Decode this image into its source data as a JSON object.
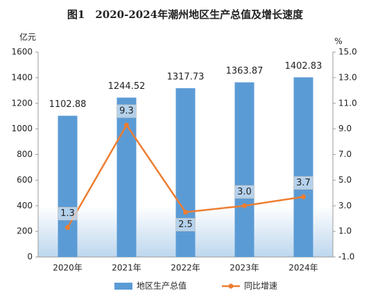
{
  "chart_data": {
    "type": "bar",
    "title": "图1　2020-2024年潮州地区生产总值及增长速度",
    "y_label": "亿元",
    "y2_label": "%",
    "categories": [
      "2020年",
      "2021年",
      "2022年",
      "2023年",
      "2024年"
    ],
    "series": [
      {
        "name": "地区生产总值",
        "color": "#5b9bd5",
        "values": [
          1102.88,
          1244.52,
          1317.73,
          1363.87,
          1402.83
        ]
      },
      {
        "name": "同比增速",
        "type": "line",
        "axis": "y2",
        "color": "#ed7d31",
        "values": [
          1.3,
          9.3,
          2.5,
          3.0,
          3.7
        ],
        "value_labels": [
          "1.3",
          "9.3",
          "2.5",
          "3.0",
          "3.7"
        ]
      }
    ],
    "ylim": [
      0,
      1600
    ],
    "yticks": [
      0,
      200,
      400,
      600,
      800,
      1000,
      1200,
      1400,
      1600
    ],
    "y2lim": [
      -1,
      15
    ],
    "y2ticks": [
      {
        "value": -1,
        "label": "-1.0"
      },
      {
        "value": 1,
        "label": "1.0"
      },
      {
        "value": 3,
        "label": "3.0"
      },
      {
        "value": 5,
        "label": "5.0"
      },
      {
        "value": 7,
        "label": "7.0"
      },
      {
        "value": 9,
        "label": "9.0"
      },
      {
        "value": 11,
        "label": "11.0"
      },
      {
        "value": 13,
        "label": "13.0"
      },
      {
        "value": 15,
        "label": "15.0"
      }
    ],
    "legend": "bottom"
  }
}
